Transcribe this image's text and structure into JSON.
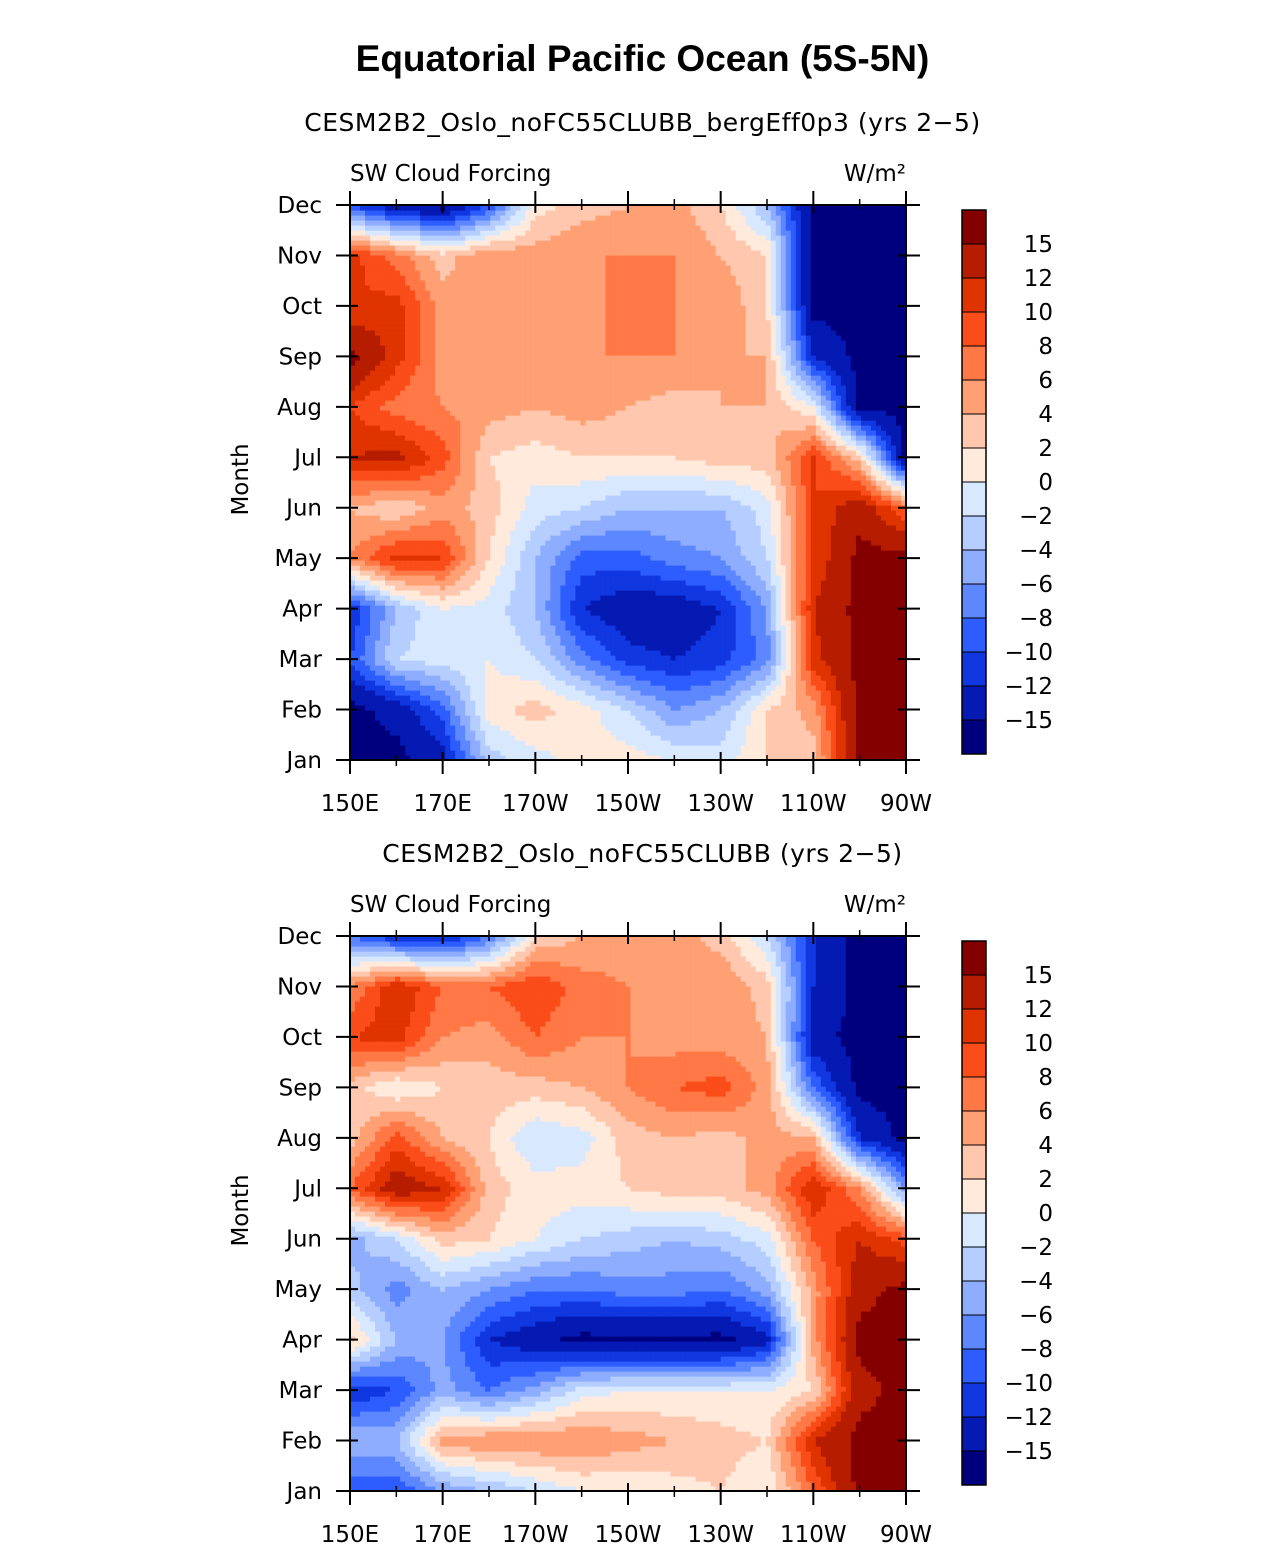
{
  "title": "Equatorial Pacific Ocean (5S-5N)",
  "colorbar": {
    "labels": [
      "15",
      "12",
      "10",
      "8",
      "6",
      "4",
      "2",
      "0",
      "−2",
      "−4",
      "−6",
      "−8",
      "−10",
      "−12",
      "−15"
    ],
    "colors": [
      "#840000",
      "#b61c00",
      "#df3300",
      "#fa4d1a",
      "#ff7845",
      "#ff9f74",
      "#ffc8ae",
      "#ffeadc",
      "#d8e8ff",
      "#b5ceff",
      "#8fadff",
      "#5c87ff",
      "#2d5cff",
      "#1137e0",
      "#0519b3",
      "#00007f"
    ]
  },
  "chart_data": [
    {
      "type": "heatmap",
      "title": "CESM2B2_Oslo_noFC55CLUBB_bergEff0p3 (yrs 2−5)",
      "left_label": "SW Cloud Forcing",
      "right_label": "W/m²",
      "xlabel": "",
      "ylabel": "Month",
      "x_ticklabels": [
        "150E",
        "170E",
        "170W",
        "150W",
        "130W",
        "110W",
        "90W"
      ],
      "y_ticklabels": [
        "Jan",
        "Feb",
        "Mar",
        "Apr",
        "May",
        "Jun",
        "Jul",
        "Aug",
        "Sep",
        "Oct",
        "Nov",
        "Dec"
      ],
      "x": [
        150,
        160,
        170,
        180,
        190,
        200,
        210,
        220,
        230,
        240,
        250,
        260,
        270
      ],
      "y": [
        "Jan",
        "Feb",
        "Mar",
        "Apr",
        "May",
        "Jun",
        "Jul",
        "Aug",
        "Sep",
        "Oct",
        "Nov",
        "Dec"
      ],
      "z": [
        [
          -16,
          -16,
          -13,
          -3,
          -1,
          1,
          1,
          0,
          -1,
          2,
          3,
          16,
          16
        ],
        [
          -16,
          -14,
          -9,
          1,
          3,
          1,
          -2,
          -6,
          -4,
          2,
          5,
          16,
          16
        ],
        [
          -10,
          -2,
          -1,
          0,
          -2,
          -7,
          -11,
          -12,
          -11,
          -7,
          11,
          16,
          16
        ],
        [
          -12,
          -4,
          0,
          -1,
          -4,
          -12,
          -14,
          -14,
          -12,
          -6,
          12,
          16,
          16
        ],
        [
          6,
          11,
          10,
          2,
          -4,
          -9,
          -9,
          -7,
          -6,
          -2,
          10,
          16,
          16
        ],
        [
          4,
          2,
          5,
          3,
          -1,
          -2,
          -4,
          -4,
          -4,
          -1,
          10,
          14,
          8
        ],
        [
          12,
          13,
          9,
          2,
          1,
          2,
          2,
          2,
          3,
          3,
          10,
          3,
          -16
        ],
        [
          10,
          7,
          6,
          5,
          4,
          5,
          4,
          3,
          4,
          4,
          0,
          -16,
          -16
        ],
        [
          16,
          11,
          5,
          6,
          4,
          6,
          6,
          6,
          4,
          4,
          -12,
          -16,
          -16
        ],
        [
          10,
          11,
          5,
          5,
          5,
          5,
          7,
          6,
          6,
          2,
          -16,
          -16,
          -16
        ],
        [
          11,
          7,
          3,
          6,
          5,
          6,
          6,
          6,
          4,
          2,
          -16,
          -16,
          -16
        ],
        [
          -10,
          -14,
          -16,
          -10,
          1,
          3,
          4,
          5,
          2,
          -4,
          -16,
          -16,
          -16
        ]
      ],
      "levels": [
        -15,
        -12,
        -10,
        -8,
        -6,
        -4,
        -2,
        0,
        2,
        4,
        6,
        8,
        10,
        12,
        15
      ]
    },
    {
      "type": "heatmap",
      "title": "CESM2B2_Oslo_noFC55CLUBB (yrs 2−5)",
      "left_label": "SW Cloud Forcing",
      "right_label": "W/m²",
      "xlabel": "",
      "ylabel": "Month",
      "x_ticklabels": [
        "150E",
        "170E",
        "170W",
        "150W",
        "130W",
        "110W",
        "90W"
      ],
      "y_ticklabels": [
        "Jan",
        "Feb",
        "Mar",
        "Apr",
        "May",
        "Jun",
        "Jul",
        "Aug",
        "Sep",
        "Oct",
        "Nov",
        "Dec"
      ],
      "x": [
        150,
        160,
        170,
        180,
        190,
        200,
        210,
        220,
        230,
        240,
        250,
        260,
        270
      ],
      "y": [
        "Jan",
        "Feb",
        "Mar",
        "Apr",
        "May",
        "Jun",
        "Jul",
        "Aug",
        "Sep",
        "Oct",
        "Nov",
        "Dec"
      ],
      "z": [
        [
          -10,
          -10,
          -6,
          -4,
          -2,
          0,
          0,
          1,
          2,
          0,
          8,
          16,
          16
        ],
        [
          -4,
          -4,
          5,
          6,
          6,
          6,
          5,
          4,
          3,
          2,
          12,
          16,
          16
        ],
        [
          -12,
          -10,
          -5,
          -8,
          -5,
          -1,
          0,
          0,
          0,
          0,
          2,
          14,
          16
        ],
        [
          3,
          -4,
          -6,
          -12,
          -14,
          -16,
          -16,
          -16,
          -16,
          -13,
          5,
          16,
          16
        ],
        [
          -3,
          -7,
          -4,
          -6,
          -8,
          -8,
          -7,
          -7,
          -8,
          -5,
          5,
          14,
          16
        ],
        [
          -5,
          -2,
          3,
          2,
          0,
          -2,
          -3,
          -4,
          -3,
          -1,
          8,
          12,
          9
        ],
        [
          8,
          14,
          12,
          3,
          1,
          1,
          2,
          3,
          3,
          5,
          12,
          6,
          -6
        ],
        [
          3,
          9,
          4,
          2,
          -2,
          -1,
          3,
          4,
          3,
          5,
          4,
          -12,
          -16
        ],
        [
          3,
          0,
          2,
          3,
          3,
          4,
          6,
          8,
          9,
          5,
          -8,
          -16,
          -16
        ],
        [
          10,
          11,
          6,
          5,
          8,
          6,
          6,
          5,
          5,
          4,
          -14,
          -16,
          -16
        ],
        [
          6,
          12,
          8,
          8,
          10,
          7,
          6,
          5,
          6,
          3,
          -12,
          -16,
          -16
        ],
        [
          -8,
          -12,
          -13,
          -8,
          2,
          4,
          5,
          5,
          3,
          -2,
          -12,
          -16,
          -16
        ]
      ],
      "levels": [
        -15,
        -12,
        -10,
        -8,
        -6,
        -4,
        -2,
        0,
        2,
        4,
        6,
        8,
        10,
        12,
        15
      ]
    }
  ]
}
